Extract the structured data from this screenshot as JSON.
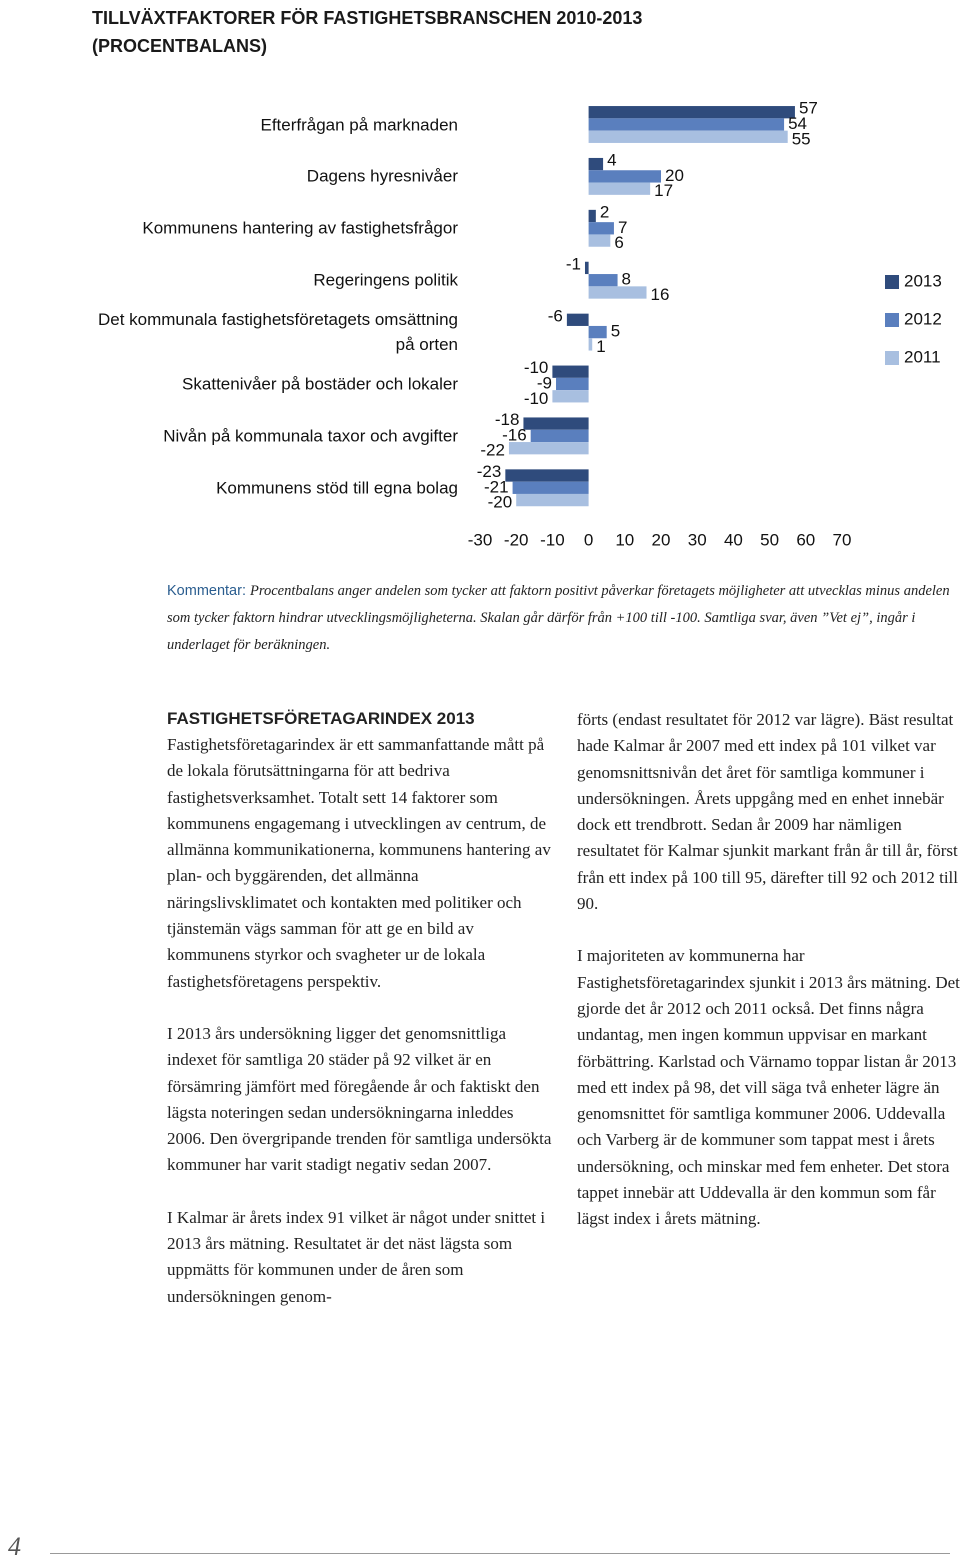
{
  "title": "TILLVÄXTFAKTORER FÖR FASTIGHETSBRANSCHEN 2010-2013 (PROCENTBALANS)",
  "chart_data": {
    "type": "bar",
    "orientation": "horizontal",
    "categories": [
      "Efterfrågan på marknaden",
      "Dagens hyresnivåer",
      "Kommunens hantering av fastighetsfrågor",
      "Regeringens politik",
      "Det kommunala fastighetsföretagets omsättning på orten",
      "Skattenivåer på bostäder och lokaler",
      "Nivån på kommunala taxor och avgifter",
      "Kommunens stöd till egna bolag"
    ],
    "series": [
      {
        "name": "2013",
        "color": "#2f4b7c",
        "values": [
          57,
          4,
          2,
          -1,
          -6,
          -10,
          -18,
          -23
        ]
      },
      {
        "name": "2012",
        "color": "#5a7fbe",
        "values": [
          54,
          20,
          7,
          8,
          5,
          -9,
          -16,
          -21
        ]
      },
      {
        "name": "2011",
        "color": "#a8bfe0",
        "values": [
          55,
          17,
          6,
          16,
          1,
          -10,
          -22,
          -20
        ]
      }
    ],
    "xlim": [
      -30,
      70
    ],
    "xticks": [
      -30,
      -20,
      -10,
      0,
      10,
      20,
      30,
      40,
      50,
      60,
      70
    ],
    "grid": false,
    "legend": "right"
  },
  "comment": {
    "label": "Kommentar:",
    "text": "Procentbalans anger andelen som tycker att faktorn positivt påverkar företagets möjligheter att utvecklas minus andelen som tycker faktorn hindrar utvecklingsmöjligheterna. Skalan går därför från +100 till -100. Samtliga svar, även ”Vet ej”, ingår i underlaget för beräkningen."
  },
  "article": {
    "heading": "FASTIGHETSFÖRETAGARINDEX 2013",
    "left_paragraphs": [
      "Fastighetsföretagarindex är ett sammanfattande mått på de lokala förutsättningarna för att bedriva fastighetsverksamhet. Totalt sett 14 faktorer som kommunens engagemang i utvecklingen av centrum, de allmänna kommunikationerna, kommunens hantering av plan- och byggärenden, det allmänna näringslivsklimatet och kontakten med politiker och tjänstemän vägs samman för att ge en bild av kommunens styrkor och svagheter ur de lokala fastighetsföretagens perspektiv.",
      "I 2013 års undersökning ligger det genomsnittliga indexet för samtliga 20 städer på 92 vilket är en försämring jämfört med föregående år och faktiskt den lägsta noteringen sedan undersökningarna inleddes 2006. Den övergripande trenden för samtliga undersökta kommuner har varit stadigt negativ sedan 2007.",
      "I Kalmar är årets index 91 vilket är något under snittet i 2013 års mätning. Resultatet är det näst lägsta som uppmätts för kommunen under de åren som undersökningen genom-"
    ],
    "right_paragraphs": [
      "förts (endast resultatet för 2012 var lägre). Bäst resultat hade Kalmar år 2007 med ett index på 101 vilket var genomsnittsnivån det året för samtliga kommuner i undersökningen. Årets uppgång med en enhet innebär dock ett trendbrott. Sedan år 2009 har nämligen resultatet för Kalmar sjunkit markant från år till år, först från ett index på 100 till 95, därefter till 92 och 2012 till 90.",
      "I majoriteten av kommunerna har Fastighetsföretagarindex sjunkit i 2013 års mätning. Det gjorde det år 2012 och 2011 också. Det finns några undantag, men ingen kommun uppvisar en markant förbättring. Karlstad och Värnamo toppar listan år 2013 med ett index på 98, det vill säga två enheter lägre än genomsnittet för samtliga kommuner 2006. Uddevalla och Varberg är de kommuner som tappat mest i årets undersökning, och minskar med fem enheter. Det stora tappet innebär att Uddevalla är den kommun som får lägst index i årets mätning."
    ]
  },
  "page_number": "4"
}
